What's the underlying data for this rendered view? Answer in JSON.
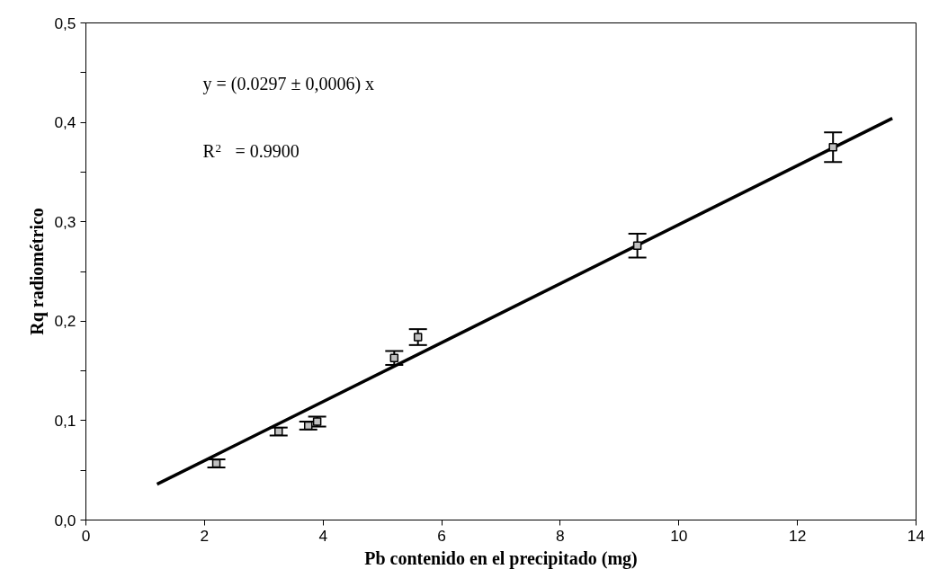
{
  "chart_data": {
    "type": "scatter",
    "xlabel": "Pb contenido en el precipitado (mg)",
    "ylabel": "Rq radiométrico",
    "annotations": [
      "y = (0.0297 ± 0,0006) x",
      "R$^{2}$ = 0.9900"
    ],
    "xlim": [
      0,
      14
    ],
    "xticks": [
      0,
      2,
      4,
      6,
      8,
      10,
      12,
      14
    ],
    "ylim": [
      0,
      0.5
    ],
    "yticks": [
      {
        "value": 0,
        "label": "0,0"
      },
      {
        "value": 0.05,
        "label": null
      },
      {
        "value": 0.1,
        "label": "0,1"
      },
      {
        "value": 0.15,
        "label": null
      },
      {
        "value": 0.2,
        "label": "0,2"
      },
      {
        "value": 0.25,
        "label": null
      },
      {
        "value": 0.3,
        "label": "0,3"
      },
      {
        "value": 0.35,
        "label": null
      },
      {
        "value": 0.4,
        "label": "0,4"
      },
      {
        "value": 0.45,
        "label": null
      },
      {
        "value": 0.5,
        "label": "0,5"
      }
    ],
    "grid": false,
    "marker": "square",
    "series": [
      {
        "color": "#000000",
        "x": [
          2.2,
          3.25,
          3.75,
          3.9,
          5.2,
          5.6,
          9.3,
          12.6
        ],
        "values": [
          0.057,
          0.089,
          0.095,
          0.099,
          0.163,
          0.184,
          0.276,
          0.375
        ],
        "errors": [
          0.004,
          0.004,
          0.004,
          0.005,
          0.007,
          0.008,
          0.012,
          0.015
        ]
      },
      {
        "type": "line",
        "marker": "none",
        "color": "#000000",
        "x": [
          1.2,
          13.6
        ],
        "values": [
          0.036,
          0.404
        ]
      }
    ]
  }
}
